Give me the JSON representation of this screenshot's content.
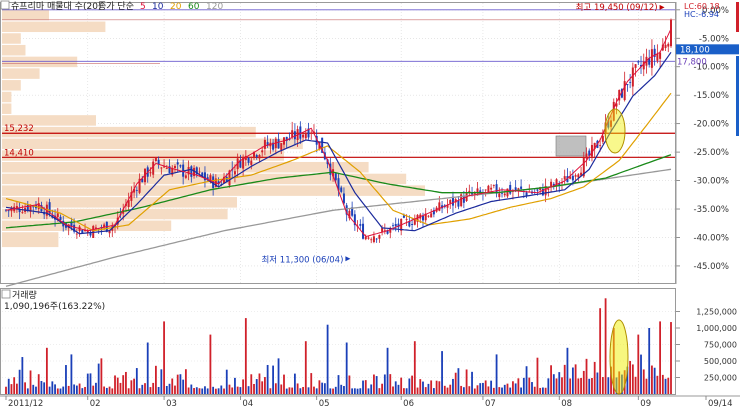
{
  "legend": {
    "title": "슈프리마 매물대 수(20)",
    "ma_label": "종가 단순",
    "ma_periods": [
      {
        "label": "5",
        "color": "#e0103a"
      },
      {
        "label": "10",
        "color": "#1b2a9c"
      },
      {
        "label": "20",
        "color": "#e0a000"
      },
      {
        "label": "60",
        "color": "#1a8a1a"
      },
      {
        "label": "120",
        "color": "#999999"
      }
    ]
  },
  "hl_info": {
    "lc": "LC:60.18",
    "hc": "HC:-6.94"
  },
  "volume_panel": {
    "title": "거래량",
    "value": "1,090,196주(163.22%)"
  },
  "colors": {
    "up": "#d0202a",
    "down": "#1a3fb8",
    "ma5": "#e0103a",
    "ma10": "#1b2a9c",
    "ma20": "#e0a000",
    "ma60": "#1a8a1a",
    "ma120": "#999999",
    "volume_profile": "#f5dcc4",
    "hline": "#c00000",
    "ellipse": "#f0f000"
  },
  "chart_data": [
    {
      "type": "candlestick",
      "x_tick_labels": [
        "2011/12",
        "02",
        "03",
        "04",
        "05",
        "06",
        "07",
        "08",
        "09",
        "09/14"
      ],
      "y_tick_labels": [
        "0.00%",
        "-5.00%",
        "-10.00%",
        "-15.00%",
        "-20.00%",
        "-25.00%",
        "-30.00%",
        "-35.00%",
        "-40.00%",
        "-45.00%"
      ],
      "y_ticks_pct": [
        0,
        -5,
        -10,
        -15,
        -20,
        -25,
        -30,
        -35,
        -40,
        -45
      ],
      "ylim_pct": [
        -48,
        1.2
      ],
      "reference_price": 19450,
      "annotations": {
        "high": {
          "text": "최고 19,450 (09/12)",
          "price": 19450
        },
        "low": {
          "text": "최저 11,300 (06/04)",
          "price": 11300
        },
        "last_high_label": "19,350",
        "current_label": "18,100",
        "current_price": 18100,
        "level_label": "17,800",
        "level_price": 17800
      },
      "horizontal_levels": [
        {
          "label": "15,232",
          "price": 15232
        },
        {
          "label": "14,410",
          "price": 14410
        }
      ],
      "moving_average_keypoints": {
        "ma5": [
          [
            0,
            12600
          ],
          [
            12,
            12800
          ],
          [
            22,
            12100
          ],
          [
            30,
            11900
          ],
          [
            40,
            12100
          ],
          [
            48,
            13500
          ],
          [
            55,
            14200
          ],
          [
            62,
            14000
          ],
          [
            70,
            13800
          ],
          [
            78,
            13500
          ],
          [
            86,
            14300
          ],
          [
            95,
            14800
          ],
          [
            103,
            15000
          ],
          [
            112,
            15400
          ],
          [
            118,
            14300
          ],
          [
            125,
            12500
          ],
          [
            132,
            11700
          ],
          [
            140,
            11900
          ],
          [
            150,
            12300
          ],
          [
            160,
            12700
          ],
          [
            170,
            13100
          ],
          [
            182,
            13300
          ],
          [
            195,
            13200
          ],
          [
            205,
            13600
          ],
          [
            213,
            14300
          ],
          [
            218,
            15000
          ],
          [
            224,
            16300
          ],
          [
            228,
            17000
          ],
          [
            232,
            17400
          ],
          [
            236,
            17800
          ],
          [
            240,
            18000
          ],
          [
            244,
            18800
          ]
        ],
        "ma10": [
          [
            0,
            12700
          ],
          [
            15,
            12500
          ],
          [
            27,
            11800
          ],
          [
            38,
            11900
          ],
          [
            48,
            12800
          ],
          [
            58,
            13800
          ],
          [
            68,
            14000
          ],
          [
            78,
            13400
          ],
          [
            90,
            14100
          ],
          [
            100,
            14600
          ],
          [
            110,
            15000
          ],
          [
            118,
            14900
          ],
          [
            128,
            13200
          ],
          [
            138,
            12000
          ],
          [
            150,
            11900
          ],
          [
            165,
            12500
          ],
          [
            178,
            12900
          ],
          [
            192,
            13100
          ],
          [
            205,
            13300
          ],
          [
            214,
            14000
          ],
          [
            222,
            15300
          ],
          [
            230,
            16500
          ],
          [
            238,
            17200
          ],
          [
            244,
            18000
          ]
        ],
        "ma20": [
          [
            0,
            13000
          ],
          [
            20,
            12500
          ],
          [
            32,
            11900
          ],
          [
            45,
            12100
          ],
          [
            60,
            13300
          ],
          [
            75,
            13600
          ],
          [
            90,
            13800
          ],
          [
            105,
            14300
          ],
          [
            118,
            14800
          ],
          [
            130,
            13900
          ],
          [
            142,
            12600
          ],
          [
            155,
            12100
          ],
          [
            170,
            12300
          ],
          [
            185,
            12700
          ],
          [
            200,
            13000
          ],
          [
            212,
            13400
          ],
          [
            225,
            14300
          ],
          [
            235,
            15500
          ],
          [
            244,
            16600
          ]
        ],
        "ma60": [
          [
            0,
            12000
          ],
          [
            25,
            12200
          ],
          [
            50,
            12700
          ],
          [
            75,
            13300
          ],
          [
            100,
            13700
          ],
          [
            120,
            13900
          ],
          [
            140,
            13500
          ],
          [
            160,
            13200
          ],
          [
            180,
            13200
          ],
          [
            200,
            13400
          ],
          [
            220,
            13700
          ],
          [
            244,
            14500
          ]
        ],
        "ma120": [
          [
            0,
            10000
          ],
          [
            40,
            11000
          ],
          [
            80,
            11900
          ],
          [
            120,
            12600
          ],
          [
            160,
            13000
          ],
          [
            200,
            13400
          ],
          [
            244,
            14000
          ]
        ]
      },
      "session_count": 245,
      "x_tick_sessions": [
        0,
        30,
        58,
        86,
        114,
        145,
        175,
        203,
        232,
        244
      ]
    },
    {
      "type": "bar",
      "title": "거래량",
      "y_tick_labels": [
        "250,000",
        "500,000",
        "750,000",
        "1,000,000",
        "1,250,000"
      ],
      "y_ticks": [
        250000,
        500000,
        750000,
        1000000,
        1250000
      ],
      "ylim": [
        0,
        1500000
      ],
      "spikes": [
        {
          "session": 6,
          "value": 560000
        },
        {
          "session": 15,
          "value": 700000
        },
        {
          "session": 24,
          "value": 600000
        },
        {
          "session": 35,
          "value": 540000
        },
        {
          "session": 52,
          "value": 780000
        },
        {
          "session": 58,
          "value": 1100000
        },
        {
          "session": 75,
          "value": 900000
        },
        {
          "session": 88,
          "value": 1150000
        },
        {
          "session": 100,
          "value": 540000
        },
        {
          "session": 110,
          "value": 800000
        },
        {
          "session": 118,
          "value": 1050000
        },
        {
          "session": 125,
          "value": 780000
        },
        {
          "session": 140,
          "value": 700000
        },
        {
          "session": 150,
          "value": 800000
        },
        {
          "session": 160,
          "value": 650000
        },
        {
          "session": 180,
          "value": 600000
        },
        {
          "session": 195,
          "value": 550000
        },
        {
          "session": 206,
          "value": 700000
        },
        {
          "session": 218,
          "value": 1300000
        },
        {
          "session": 220,
          "value": 1450000
        },
        {
          "session": 223,
          "value": 1000000
        },
        {
          "session": 232,
          "value": 900000
        },
        {
          "session": 236,
          "value": 1000000
        },
        {
          "session": 240,
          "value": 1100000
        },
        {
          "session": 244,
          "value": 1090196
        }
      ],
      "last_value": 1090196
    }
  ],
  "volume_profile": [
    {
      "upper": 19450,
      "lower": 19050,
      "rel": 0.1
    },
    {
      "upper": 19050,
      "lower": 18650,
      "rel": 0.22
    },
    {
      "upper": 18650,
      "lower": 18250,
      "rel": 0.04
    },
    {
      "upper": 18250,
      "lower": 17850,
      "rel": 0.05
    },
    {
      "upper": 17850,
      "lower": 17450,
      "rel": 0.16
    },
    {
      "upper": 17450,
      "lower": 17050,
      "rel": 0.08
    },
    {
      "upper": 17050,
      "lower": 16650,
      "rel": 0.04
    },
    {
      "upper": 16650,
      "lower": 16250,
      "rel": 0.02
    },
    {
      "upper": 16250,
      "lower": 15850,
      "rel": 0.02
    },
    {
      "upper": 15850,
      "lower": 15450,
      "rel": 0.2
    },
    {
      "upper": 15450,
      "lower": 15050,
      "rel": 0.54
    },
    {
      "upper": 15050,
      "lower": 14650,
      "rel": 0.64
    },
    {
      "upper": 14650,
      "lower": 14250,
      "rel": 0.6
    },
    {
      "upper": 14250,
      "lower": 13850,
      "rel": 0.78
    },
    {
      "upper": 13850,
      "lower": 13450,
      "rel": 0.86
    },
    {
      "upper": 13450,
      "lower": 13050,
      "rel": 0.9
    },
    {
      "upper": 13050,
      "lower": 12650,
      "rel": 0.5
    },
    {
      "upper": 12650,
      "lower": 12250,
      "rel": 0.48
    },
    {
      "upper": 12250,
      "lower": 11850,
      "rel": 0.36
    },
    {
      "upper": 11850,
      "lower": 11300,
      "rel": 0.12
    }
  ]
}
